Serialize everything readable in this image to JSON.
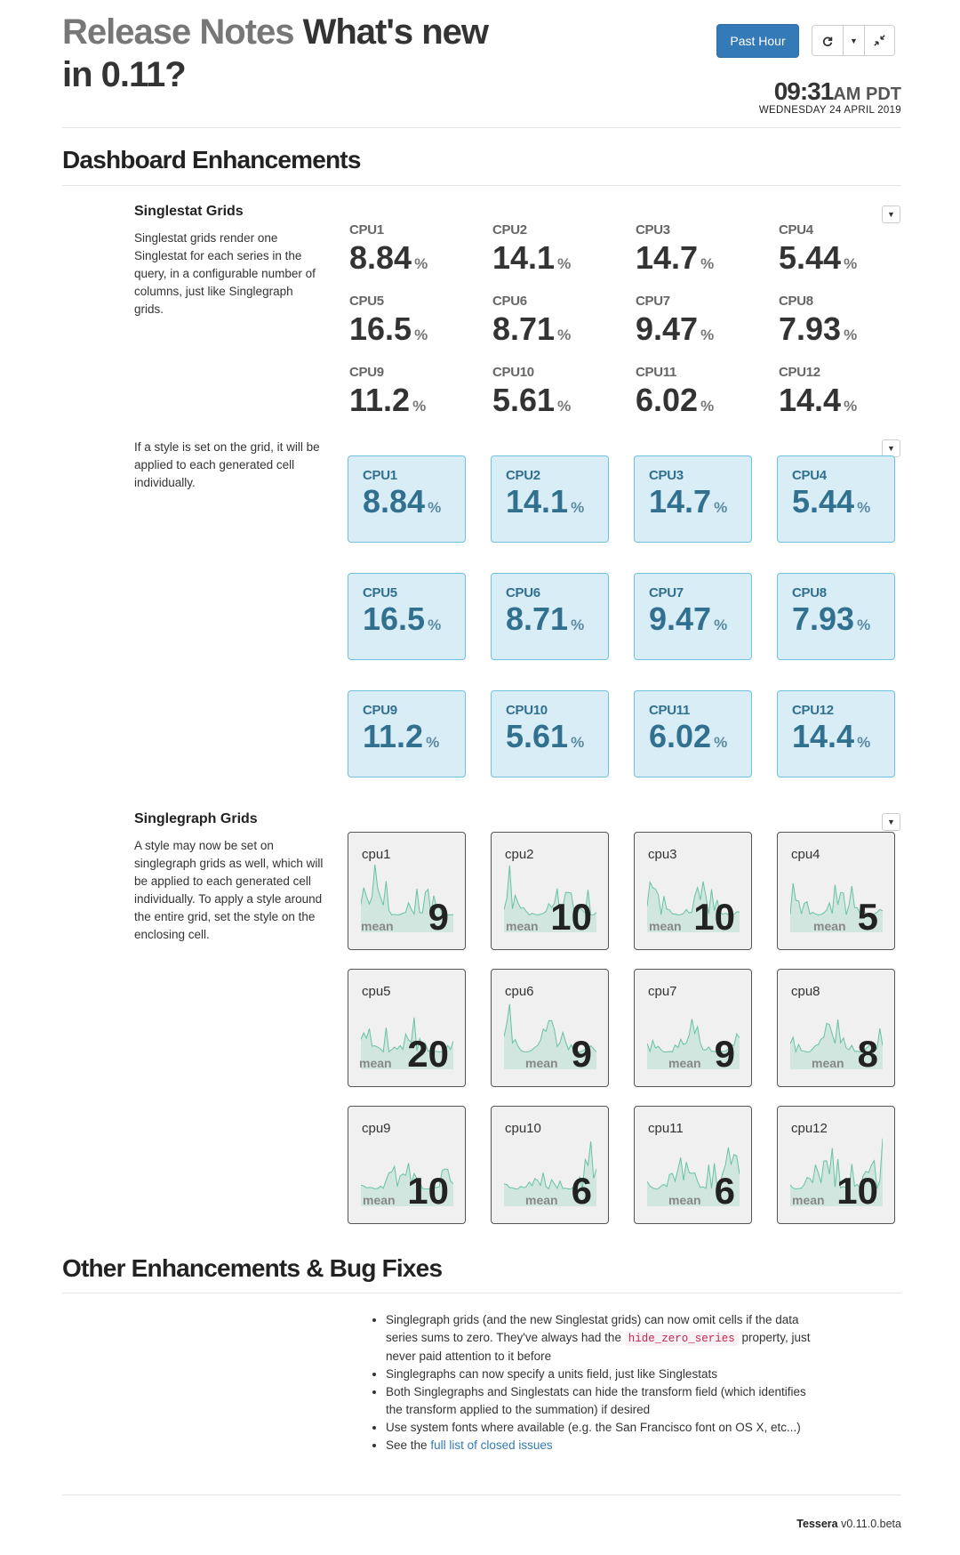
{
  "header": {
    "title_muted": "Release Notes",
    "title_main": "What's new in 0.11?",
    "range_button": "Past Hour",
    "refresh_icon": "refresh-icon",
    "dropdown_icon": "caret-down-icon",
    "collapse_icon": "compress-icon",
    "clock_time": "09:31",
    "clock_ampm": "AM PDT",
    "clock_date": "WEDNESDAY 24 APRIL 2019"
  },
  "dashboard": {
    "heading": "Dashboard Enhancements",
    "singlestat": {
      "title": "Singlestat Grids",
      "description": "Singlestat grids render one Singlestat for each series in the query, in a configurable number of columns, just like Singlegraph grids.",
      "unit": "%",
      "stats": [
        {
          "label": "CPU1",
          "value": "8.84"
        },
        {
          "label": "CPU2",
          "value": "14.1"
        },
        {
          "label": "CPU3",
          "value": "14.7"
        },
        {
          "label": "CPU4",
          "value": "5.44"
        },
        {
          "label": "CPU5",
          "value": "16.5"
        },
        {
          "label": "CPU6",
          "value": "8.71"
        },
        {
          "label": "CPU7",
          "value": "9.47"
        },
        {
          "label": "CPU8",
          "value": "7.93"
        },
        {
          "label": "CPU9",
          "value": "11.2"
        },
        {
          "label": "CPU10",
          "value": "5.61"
        },
        {
          "label": "CPU11",
          "value": "6.02"
        },
        {
          "label": "CPU12",
          "value": "14.4"
        }
      ]
    },
    "styled": {
      "description": "If a style is set on the grid, it will be applied to each generated cell individually."
    },
    "singlegraph": {
      "title": "Singlegraph Grids",
      "description": "A style may now be set on singlegraph grids as well, which will be applied to each generated cell individually. To apply a style around the entire grid, set the style on the enclosing cell.",
      "mean_label": "mean",
      "graphs": [
        {
          "label": "cpu1",
          "value": "9"
        },
        {
          "label": "cpu2",
          "value": "10"
        },
        {
          "label": "cpu3",
          "value": "10"
        },
        {
          "label": "cpu4",
          "value": "5"
        },
        {
          "label": "cpu5",
          "value": "20"
        },
        {
          "label": "cpu6",
          "value": "9"
        },
        {
          "label": "cpu7",
          "value": "9"
        },
        {
          "label": "cpu8",
          "value": "8"
        },
        {
          "label": "cpu9",
          "value": "10"
        },
        {
          "label": "cpu10",
          "value": "6"
        },
        {
          "label": "cpu11",
          "value": "6"
        },
        {
          "label": "cpu12",
          "value": "10"
        }
      ]
    }
  },
  "other": {
    "heading": "Other Enhancements & Bug Fixes",
    "item1_a": "Singlegraph grids (and the new Singlestat grids) can now omit cells if the data series sums to zero. They've always had the",
    "item1_code": "hide_zero_series",
    "item1_b": "property, just never paid attention to it before",
    "item2": "Singlegraphs can now specify a units field, just like Singlestats",
    "item3": "Both Singlegraphs and Singlestats can hide the transform field (which identifies the transform applied to the summation) if desired",
    "item4": "Use system fonts where available (e.g. the San Francisco font on OS X, etc...)",
    "item5_a": "See the",
    "item5_link": "full list of closed issues"
  },
  "footer": {
    "brand": "Tessera",
    "version": "v0.11.0.beta"
  },
  "colors": {
    "primary": "#337ab7",
    "stat_cell_bg": "#d9edf7",
    "stat_cell_text": "#31708f",
    "sparkline": "#66c2a5"
  }
}
